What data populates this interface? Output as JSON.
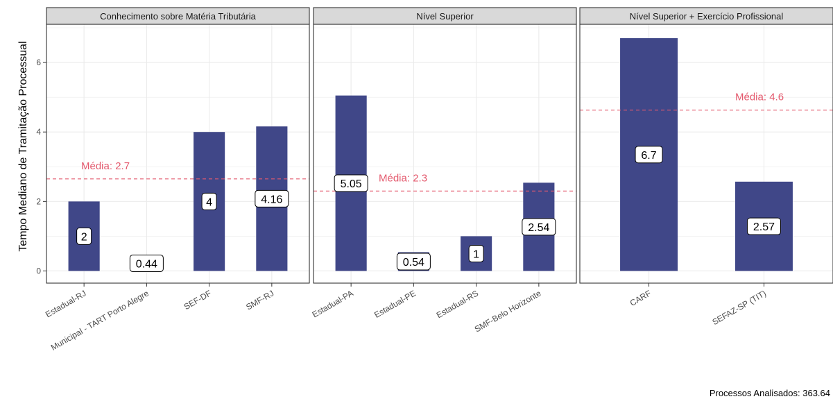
{
  "chart_data": {
    "type": "bar",
    "ylabel": "Tempo Mediano de Tramitação Processual",
    "ylim": [
      -0.35,
      7.1
    ],
    "yticks": [
      0,
      2,
      4,
      6
    ],
    "grid": true,
    "colors": {
      "bar": "#404788",
      "mean": "#e45a6e",
      "strip": "#d9d9d9",
      "panel_border": "#333333",
      "grid": "#ebebeb"
    },
    "caption": "Processos Analisados: 363.64",
    "panels": [
      {
        "title": "Conhecimento sobre Matéria Tributária",
        "categories": [
          "Estadual-RJ",
          "Municipal - TART Porto Alegre",
          "SEF-DF",
          "SMF-RJ"
        ],
        "values": [
          2,
          0.44,
          4,
          4.16
        ],
        "value_labels": [
          "2",
          "0.44",
          "4",
          "4.16"
        ],
        "mean": 2.65,
        "mean_label": "Média: 2.7"
      },
      {
        "title": "Nível Superior",
        "categories": [
          "Estadual-PA",
          "Estadual-PE",
          "Estadual-RS",
          "SMF-Belo Horizonte"
        ],
        "values": [
          5.05,
          0.54,
          1,
          2.54
        ],
        "value_labels": [
          "5.05",
          "0.54",
          "1",
          "2.54"
        ],
        "mean": 2.3,
        "mean_label": "Média: 2.3"
      },
      {
        "title": "Nível Superior + Exercício Profissional",
        "categories": [
          "CARF",
          "SEFAZ-SP (TIT)"
        ],
        "values": [
          6.7,
          2.57
        ],
        "value_labels": [
          "6.7",
          "2.57"
        ],
        "mean": 4.63,
        "mean_label": "Média: 4.6"
      }
    ]
  }
}
